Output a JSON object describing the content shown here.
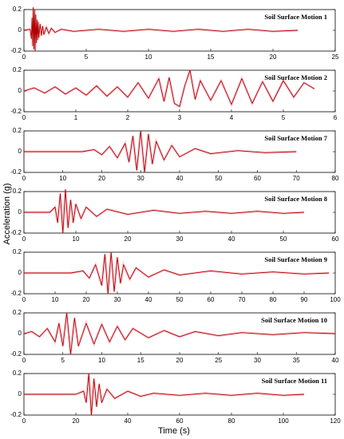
{
  "ylabel": "Acceleration (g)",
  "xlabel": "Time (s)",
  "chart_data": [
    {
      "type": "line",
      "title": "Soil Surface Motion 1",
      "color": "#b00000",
      "xlim": [
        0,
        25
      ],
      "xticks": [
        0,
        5,
        10,
        15,
        20,
        25
      ],
      "ylim": [
        -0.2,
        0.2
      ],
      "yticks": [
        -0.2,
        0,
        0.2
      ],
      "x": [
        0,
        0.5,
        0.6,
        0.65,
        0.7,
        0.75,
        0.8,
        0.85,
        0.9,
        0.95,
        1.0,
        1.05,
        1.1,
        1.15,
        1.2,
        1.3,
        1.4,
        1.5,
        1.6,
        1.8,
        2.0,
        2.2,
        2.5,
        3,
        4,
        6,
        8,
        10,
        12,
        14,
        16,
        18,
        20,
        22
      ],
      "values": [
        0,
        0.01,
        -0.08,
        0.12,
        -0.15,
        0.22,
        -0.18,
        0.2,
        -0.2,
        0.15,
        -0.12,
        0.1,
        -0.09,
        0.08,
        -0.07,
        0.06,
        -0.05,
        0.04,
        -0.04,
        0.03,
        -0.03,
        0.02,
        -0.02,
        0.01,
        -0.01,
        0.01,
        -0.01,
        0.01,
        -0.01,
        0.01,
        -0.01,
        0.01,
        -0.01,
        0
      ]
    },
    {
      "type": "line",
      "title": "Soil Surface Motion 2",
      "color": "#b00000",
      "xlim": [
        0,
        6
      ],
      "xticks": [
        0,
        1,
        2,
        3,
        4,
        5,
        6
      ],
      "ylim": [
        -0.2,
        0.2
      ],
      "yticks": [
        -0.2,
        0,
        0.2
      ],
      "x": [
        0,
        0.2,
        0.4,
        0.6,
        0.8,
        1.0,
        1.2,
        1.4,
        1.6,
        1.8,
        2.0,
        2.2,
        2.4,
        2.6,
        2.7,
        2.8,
        2.9,
        3.0,
        3.1,
        3.2,
        3.3,
        3.4,
        3.6,
        3.8,
        4.0,
        4.2,
        4.4,
        4.6,
        4.8,
        5.0,
        5.2,
        5.4,
        5.6
      ],
      "values": [
        0,
        0.03,
        -0.02,
        0.04,
        -0.03,
        0.03,
        -0.04,
        0.05,
        -0.05,
        0.04,
        -0.06,
        0.08,
        -0.07,
        0.12,
        -0.1,
        0.13,
        -0.12,
        -0.15,
        0.05,
        0.2,
        -0.08,
        0.1,
        -0.09,
        0.1,
        -0.13,
        0.12,
        -0.12,
        0.09,
        -0.1,
        0.1,
        -0.06,
        0.08,
        0.02
      ]
    },
    {
      "type": "line",
      "title": "Soil Surface Motion 7",
      "color": "#b00000",
      "xlim": [
        0,
        80
      ],
      "xticks": [
        0,
        10,
        20,
        30,
        40,
        50,
        60,
        70,
        80
      ],
      "ylim": [
        -0.2,
        0.2
      ],
      "yticks": [
        -0.2,
        0,
        0.2
      ],
      "x": [
        0,
        15,
        18,
        20,
        22,
        24,
        26,
        27,
        28,
        29,
        30,
        31,
        32,
        33,
        34,
        36,
        38,
        40,
        44,
        48,
        55,
        62,
        70
      ],
      "values": [
        0,
        0,
        0.02,
        -0.03,
        0.05,
        -0.06,
        0.08,
        -0.1,
        0.15,
        -0.18,
        0.2,
        -0.2,
        0.17,
        -0.12,
        0.1,
        -0.08,
        0.06,
        -0.05,
        0.03,
        -0.02,
        0.01,
        -0.01,
        0
      ]
    },
    {
      "type": "line",
      "title": "Soil Surface Motion 8",
      "color": "#b00000",
      "xlim": [
        0,
        60
      ],
      "xticks": [
        0,
        10,
        20,
        30,
        40,
        50,
        60
      ],
      "ylim": [
        -0.2,
        0.2
      ],
      "yticks": [
        -0.2,
        0,
        0.2
      ],
      "x": [
        0,
        5,
        6,
        6.5,
        7,
        7.5,
        8,
        8.5,
        9,
        9.5,
        10,
        11,
        12,
        14,
        16,
        20,
        25,
        30,
        35,
        40,
        45,
        50,
        54
      ],
      "values": [
        0,
        0,
        0.05,
        -0.1,
        0.18,
        -0.2,
        0.22,
        -0.15,
        0.12,
        -0.1,
        0.08,
        -0.06,
        0.05,
        -0.04,
        0.03,
        -0.02,
        0.02,
        -0.01,
        0.01,
        -0.01,
        0.01,
        -0.01,
        0
      ]
    },
    {
      "type": "line",
      "title": "Soil Surface Motion 9",
      "color": "#b00000",
      "xlim": [
        0,
        100
      ],
      "xticks": [
        0,
        10,
        20,
        30,
        40,
        50,
        60,
        70,
        80,
        90,
        100
      ],
      "ylim": [
        -0.2,
        0.2
      ],
      "yticks": [
        -0.2,
        0,
        0.2
      ],
      "x": [
        0,
        15,
        19,
        21,
        23,
        25,
        26,
        27,
        28,
        29,
        30,
        31,
        32,
        34,
        36,
        40,
        45,
        50,
        60,
        70,
        80,
        90,
        98
      ],
      "values": [
        0,
        0,
        0.02,
        -0.05,
        0.08,
        -0.12,
        0.18,
        -0.2,
        0.2,
        -0.18,
        0.15,
        -0.1,
        0.08,
        -0.06,
        0.05,
        -0.04,
        0.03,
        -0.02,
        0.02,
        -0.01,
        0.01,
        -0.01,
        0
      ]
    },
    {
      "type": "line",
      "title": "Soil Surface Motion 10",
      "color": "#b00000",
      "xlim": [
        0,
        40
      ],
      "xticks": [
        0,
        5,
        10,
        15,
        20,
        25,
        30,
        35,
        40
      ],
      "ylim": [
        -0.2,
        0.2
      ],
      "yticks": [
        -0.2,
        0,
        0.2
      ],
      "x": [
        0,
        1,
        2,
        3,
        4,
        4.5,
        5,
        5.5,
        6,
        6.5,
        7,
        8,
        9,
        10,
        11,
        12,
        13,
        14,
        16,
        18,
        20,
        22,
        25,
        28,
        32,
        36,
        40
      ],
      "values": [
        0,
        0.02,
        -0.03,
        0.05,
        -0.08,
        0.1,
        -0.12,
        0.2,
        -0.2,
        0.15,
        -0.12,
        0.1,
        -0.1,
        0.09,
        -0.08,
        0.07,
        -0.06,
        0.05,
        -0.04,
        0.03,
        -0.03,
        0.02,
        -0.02,
        0.01,
        -0.01,
        0.01,
        0
      ]
    },
    {
      "type": "line",
      "title": "Soil Surface Motion 11",
      "color": "#b00000",
      "xlim": [
        0,
        120
      ],
      "xticks": [
        0,
        20,
        40,
        60,
        80,
        100,
        120
      ],
      "ylim": [
        -0.2,
        0.2
      ],
      "yticks": [
        -0.2,
        0,
        0.2
      ],
      "x": [
        0,
        20,
        23,
        24,
        25,
        26,
        27,
        28,
        29,
        30,
        32,
        35,
        40,
        45,
        50,
        60,
        70,
        80,
        90,
        100,
        108
      ],
      "values": [
        0,
        0,
        0.03,
        -0.08,
        0.2,
        -0.2,
        0.15,
        -0.12,
        0.1,
        -0.08,
        0.05,
        -0.04,
        0.03,
        -0.02,
        0.01,
        -0.01,
        0.01,
        -0.01,
        0.01,
        -0.01,
        0
      ]
    }
  ]
}
